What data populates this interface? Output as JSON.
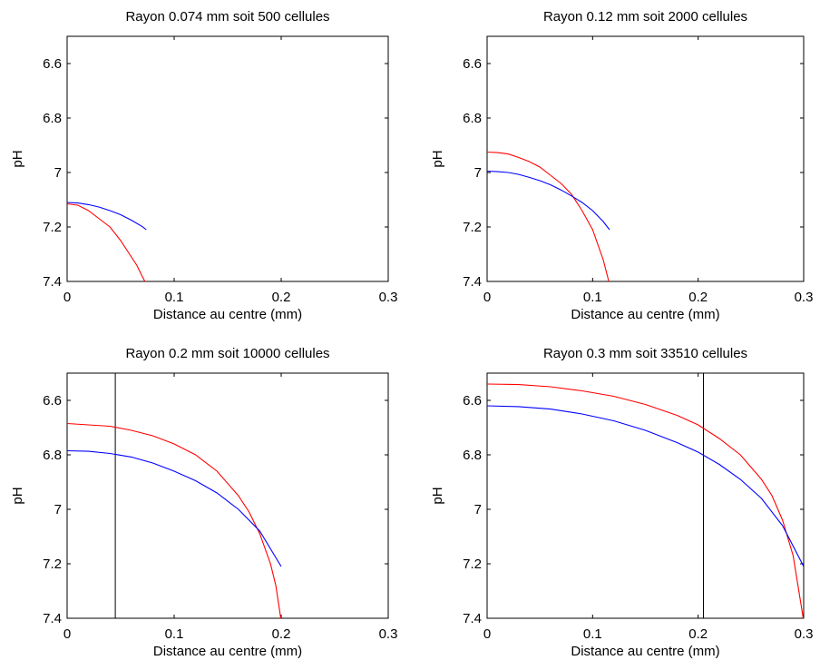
{
  "chart_data": [
    {
      "type": "line",
      "title": "Rayon 0.074 mm soit 500 cellules",
      "xlabel": "Distance au centre (mm)",
      "ylabel": "pH",
      "xlim": [
        0,
        0.3
      ],
      "ylim": [
        6.5,
        7.4
      ],
      "y_reversed": true,
      "xticks": [
        0,
        0.1,
        0.2,
        0.3
      ],
      "xtick_labels": [
        "0",
        "0.1",
        "0.2",
        "0.3"
      ],
      "yticks": [
        6.6,
        6.8,
        7,
        7.2,
        7.4
      ],
      "ytick_labels": [
        "6.6",
        "6.8",
        "7",
        "7.2",
        "7.4"
      ],
      "vline": null,
      "series": [
        {
          "color": "#ff0000",
          "x": [
            0,
            0.01,
            0.02,
            0.03,
            0.04,
            0.05,
            0.06,
            0.065,
            0.07,
            0.074
          ],
          "y": [
            7.115,
            7.12,
            7.14,
            7.17,
            7.2,
            7.25,
            7.31,
            7.34,
            7.38,
            7.41
          ]
        },
        {
          "color": "#0000ff",
          "x": [
            0,
            0.01,
            0.02,
            0.03,
            0.04,
            0.05,
            0.06,
            0.07,
            0.074
          ],
          "y": [
            7.11,
            7.112,
            7.118,
            7.127,
            7.14,
            7.155,
            7.175,
            7.198,
            7.21
          ]
        }
      ]
    },
    {
      "type": "line",
      "title": "Rayon 0.12 mm soit 2000 cellules",
      "xlabel": "Distance au centre (mm)",
      "ylabel": "pH",
      "xlim": [
        0,
        0.3
      ],
      "ylim": [
        6.5,
        7.4
      ],
      "y_reversed": true,
      "xticks": [
        0,
        0.1,
        0.2,
        0.3
      ],
      "xtick_labels": [
        "0",
        "0.1",
        "0.2",
        "0.3"
      ],
      "yticks": [
        6.6,
        6.8,
        7,
        7.2,
        7.4
      ],
      "ytick_labels": [
        "6.6",
        "6.8",
        "7",
        "7.2",
        "7.4"
      ],
      "vline": null,
      "series": [
        {
          "color": "#ff0000",
          "x": [
            0,
            0.01,
            0.02,
            0.03,
            0.04,
            0.05,
            0.06,
            0.07,
            0.08,
            0.09,
            0.1,
            0.11,
            0.116
          ],
          "y": [
            6.925,
            6.927,
            6.932,
            6.945,
            6.96,
            6.98,
            7.01,
            7.04,
            7.08,
            7.14,
            7.21,
            7.32,
            7.41
          ]
        },
        {
          "color": "#0000ff",
          "x": [
            0,
            0.01,
            0.02,
            0.03,
            0.04,
            0.05,
            0.06,
            0.07,
            0.08,
            0.09,
            0.1,
            0.11,
            0.116
          ],
          "y": [
            6.995,
            6.997,
            7.0,
            7.007,
            7.018,
            7.03,
            7.045,
            7.064,
            7.086,
            7.11,
            7.14,
            7.18,
            7.21
          ]
        }
      ]
    },
    {
      "type": "line",
      "title": "Rayon 0.2 mm soit 10000 cellules",
      "xlabel": "Distance au centre (mm)",
      "ylabel": "pH",
      "xlim": [
        0,
        0.3
      ],
      "ylim": [
        6.5,
        7.4
      ],
      "y_reversed": true,
      "xticks": [
        0,
        0.1,
        0.2,
        0.3
      ],
      "xtick_labels": [
        "0",
        "0.1",
        "0.2",
        "0.3"
      ],
      "yticks": [
        6.6,
        6.8,
        7,
        7.2,
        7.4
      ],
      "ytick_labels": [
        "6.6",
        "6.8",
        "7",
        "7.2",
        "7.4"
      ],
      "vline": 0.045,
      "series": [
        {
          "color": "#ff0000",
          "x": [
            0,
            0.02,
            0.04,
            0.06,
            0.08,
            0.1,
            0.12,
            0.14,
            0.16,
            0.17,
            0.18,
            0.19,
            0.195,
            0.2
          ],
          "y": [
            6.685,
            6.69,
            6.695,
            6.71,
            6.73,
            6.76,
            6.8,
            6.86,
            6.95,
            7.01,
            7.09,
            7.2,
            7.28,
            7.41
          ]
        },
        {
          "color": "#0000ff",
          "x": [
            0,
            0.02,
            0.04,
            0.06,
            0.08,
            0.1,
            0.12,
            0.14,
            0.16,
            0.18,
            0.2
          ],
          "y": [
            6.785,
            6.787,
            6.795,
            6.808,
            6.83,
            6.86,
            6.895,
            6.94,
            7.0,
            7.08,
            7.21
          ]
        }
      ]
    },
    {
      "type": "line",
      "title": "Rayon 0.3 mm soit 33510 cellules",
      "xlabel": "Distance au centre (mm)",
      "ylabel": "pH",
      "xlim": [
        0,
        0.3
      ],
      "ylim": [
        6.5,
        7.4
      ],
      "y_reversed": true,
      "xticks": [
        0,
        0.1,
        0.2,
        0.3
      ],
      "xtick_labels": [
        "0",
        "0.1",
        "0.2",
        "0.3"
      ],
      "yticks": [
        6.6,
        6.8,
        7,
        7.2,
        7.4
      ],
      "ytick_labels": [
        "6.6",
        "6.8",
        "7",
        "7.2",
        "7.4"
      ],
      "vline": 0.205,
      "series": [
        {
          "color": "#ff0000",
          "x": [
            0,
            0.03,
            0.06,
            0.09,
            0.12,
            0.15,
            0.18,
            0.2,
            0.22,
            0.24,
            0.26,
            0.27,
            0.28,
            0.29,
            0.3
          ],
          "y": [
            6.54,
            6.542,
            6.55,
            6.565,
            6.585,
            6.615,
            6.655,
            6.69,
            6.74,
            6.8,
            6.89,
            6.95,
            7.04,
            7.17,
            7.41
          ]
        },
        {
          "color": "#0000ff",
          "x": [
            0,
            0.03,
            0.06,
            0.09,
            0.12,
            0.15,
            0.18,
            0.2,
            0.22,
            0.24,
            0.26,
            0.28,
            0.3
          ],
          "y": [
            6.62,
            6.623,
            6.632,
            6.65,
            6.675,
            6.71,
            6.755,
            6.79,
            6.835,
            6.89,
            6.96,
            7.06,
            7.21
          ]
        }
      ]
    }
  ]
}
